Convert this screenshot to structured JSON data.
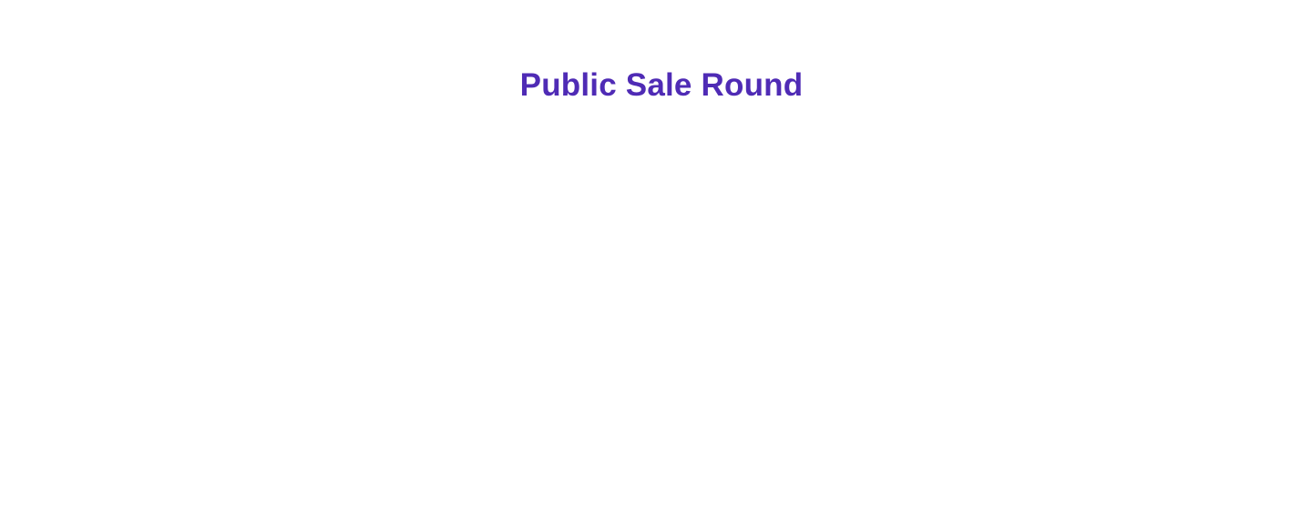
{
  "section": {
    "title": "Public Sale Round",
    "title_color": "#4f2bb5"
  },
  "colors": {
    "background": "#ffffff"
  }
}
